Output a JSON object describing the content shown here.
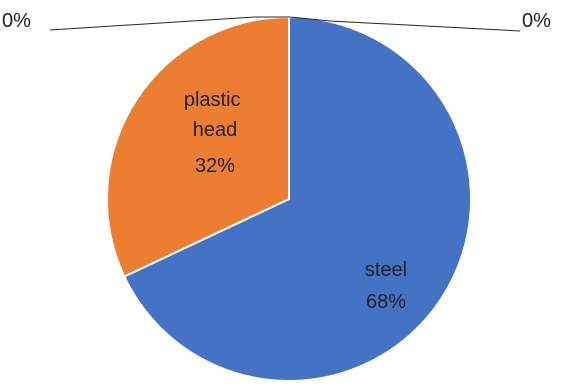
{
  "chart_data": {
    "type": "pie",
    "title": "",
    "slices": [
      {
        "name": "steel",
        "value": 68,
        "label": "68%",
        "color": "#4472C4"
      },
      {
        "name": "plastic head",
        "value": 32,
        "label": "32%",
        "color": "#ED7D31"
      },
      {
        "name": "",
        "value": 0,
        "label": "0%",
        "color": "#A5A5A5"
      },
      {
        "name": "",
        "value": 0,
        "label": "0%",
        "color": "#FFC000"
      }
    ],
    "legend": "none"
  }
}
